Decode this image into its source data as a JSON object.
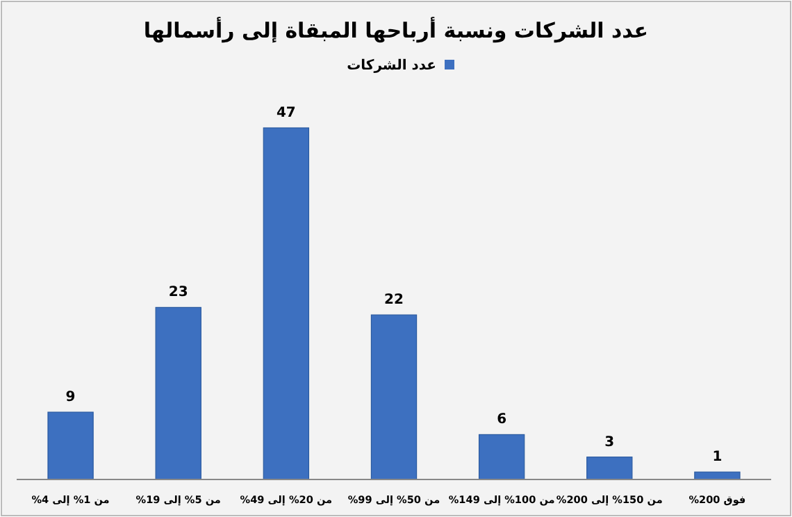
{
  "chart_data": {
    "type": "bar",
    "title": "عدد الشركات ونسبة أرباحها المبقاة إلى رأسمالها",
    "categories": [
      "من 1% إلى 4%",
      "من 5% إلى 19%",
      "من 20% إلى 49%",
      "من 50% إلى 99%",
      "من 100% إلى 149%",
      "من 150% إلى 200%",
      "فوق 200%"
    ],
    "series": [
      {
        "name": "عدد الشركات",
        "color": "#3d70c0",
        "values": [
          9,
          23,
          47,
          22,
          6,
          3,
          1
        ]
      }
    ],
    "data_labels": true,
    "legend": "top",
    "grid": false
  }
}
